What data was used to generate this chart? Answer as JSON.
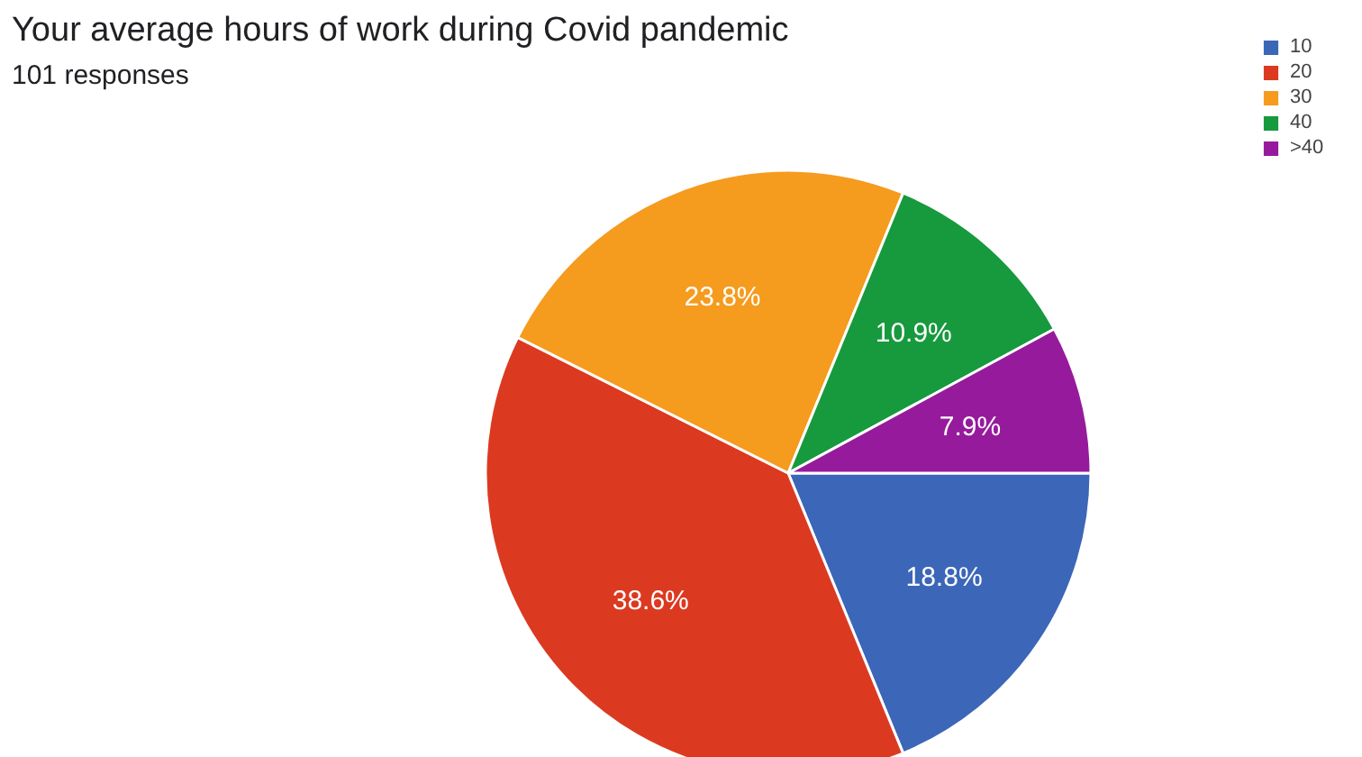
{
  "chart_data": {
    "type": "pie",
    "title": "Your average hours of work during Covid pandemic",
    "subtitle": "101 responses",
    "categories": [
      "10",
      "20",
      "30",
      "40",
      ">40"
    ],
    "values": [
      18.8,
      38.6,
      23.8,
      10.9,
      7.9
    ],
    "colors": [
      "#3c66b8",
      "#db3a21",
      "#f59b1e",
      "#17993d",
      "#961b9c"
    ],
    "value_labels": [
      "18.8%",
      "38.6%",
      "23.8%",
      "10.9%",
      "7.9%"
    ],
    "legend": "top right"
  }
}
